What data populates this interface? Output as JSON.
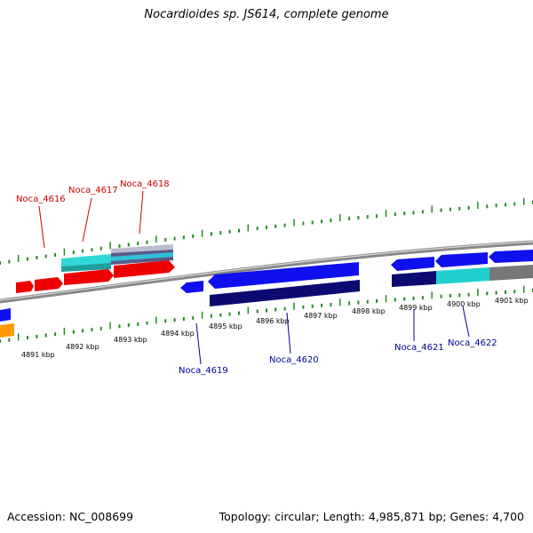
{
  "title": "Nocardioides sp. JS614, complete genome",
  "footer": {
    "accession": "Accession: NC_008699",
    "summary": "Topology: circular; Length: 4,985,871 bp; Genes: 4,700"
  },
  "colors": {
    "forward_label": "#cc0000",
    "reverse_label": "#000099",
    "tick": "#228b22",
    "backbone": "#808080",
    "red": "#ee0000",
    "blue": "#1010ee",
    "navy": "#0a0a70",
    "cyan": "#20d0d0",
    "orange": "#ff9900",
    "gray": "#777777"
  },
  "scale": {
    "ticks": [
      {
        "label": "4891 kbp"
      },
      {
        "label": "4892 kbp"
      },
      {
        "label": "4893 kbp"
      },
      {
        "label": "4894 kbp"
      },
      {
        "label": "4895 kbp"
      },
      {
        "label": "4896 kbp"
      },
      {
        "label": "4897 kbp"
      },
      {
        "label": "4898 kbp"
      },
      {
        "label": "4899 kbp"
      },
      {
        "label": "4900 kbp"
      },
      {
        "label": "4901 kbp"
      }
    ]
  },
  "genes": [
    {
      "label": "Noca_4616",
      "strand": "forward"
    },
    {
      "label": "Noca_4617",
      "strand": "forward"
    },
    {
      "label": "Noca_4618",
      "strand": "forward"
    },
    {
      "label": "Noca_4619",
      "strand": "reverse"
    },
    {
      "label": "Noca_4620",
      "strand": "reverse"
    },
    {
      "label": "Noca_4621",
      "strand": "reverse"
    },
    {
      "label": "Noca_4622",
      "strand": "reverse"
    }
  ]
}
